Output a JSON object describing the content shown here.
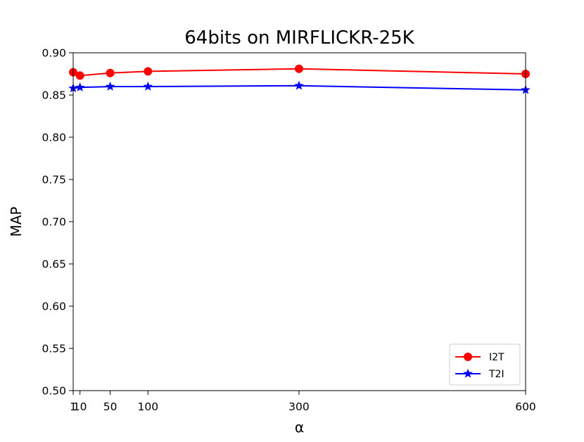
{
  "chart_data": {
    "type": "line",
    "title": "64bits on MIRFLICKR-25K",
    "xlabel": "α",
    "ylabel": "MAP",
    "x": [
      1,
      10,
      50,
      100,
      300,
      600
    ],
    "xticks": [
      1,
      10,
      50,
      100,
      300,
      600
    ],
    "xtick_labels": [
      "1",
      "10",
      "50",
      "100",
      "300",
      "600"
    ],
    "xlim": [
      1,
      600
    ],
    "ylim": [
      0.5,
      0.9
    ],
    "yticks": [
      0.5,
      0.55,
      0.6,
      0.65,
      0.7,
      0.75,
      0.8,
      0.85,
      0.9
    ],
    "ytick_labels": [
      "0.50",
      "0.55",
      "0.60",
      "0.65",
      "0.70",
      "0.75",
      "0.80",
      "0.85",
      "0.90"
    ],
    "grid": false,
    "legend_position": "lower-right",
    "series": [
      {
        "name": "I2T",
        "color": "#ff0000",
        "marker": "circle",
        "values": [
          0.877,
          0.873,
          0.876,
          0.878,
          0.881,
          0.875
        ]
      },
      {
        "name": "T2I",
        "color": "#0000ff",
        "marker": "star",
        "values": [
          0.858,
          0.859,
          0.86,
          0.86,
          0.861,
          0.856
        ]
      }
    ]
  }
}
